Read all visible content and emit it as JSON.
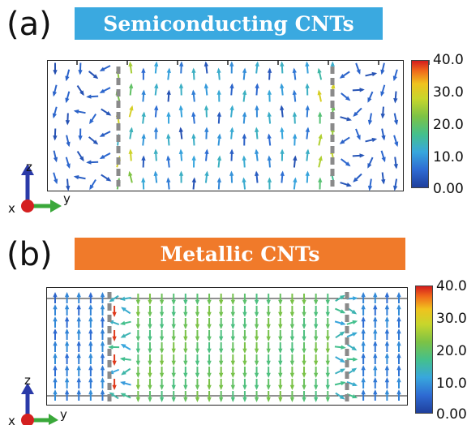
{
  "panel_a": {
    "label": "(a)",
    "title": "Semiconducting CNTs",
    "title_color": "#3aa9e0"
  },
  "panel_b": {
    "label": "(b)",
    "title": "Metallic CNTs",
    "title_color": "#f07a2a"
  },
  "colorbar": {
    "ticks": [
      "40.0",
      "30.0",
      "20.0",
      "10.0",
      "0.00"
    ],
    "colors": [
      "#d41d1d",
      "#f0c21e",
      "#7cc245",
      "#38a7dd",
      "#1f3f9c"
    ]
  },
  "axes": {
    "z": "z",
    "y": "y",
    "x": "x"
  }
}
